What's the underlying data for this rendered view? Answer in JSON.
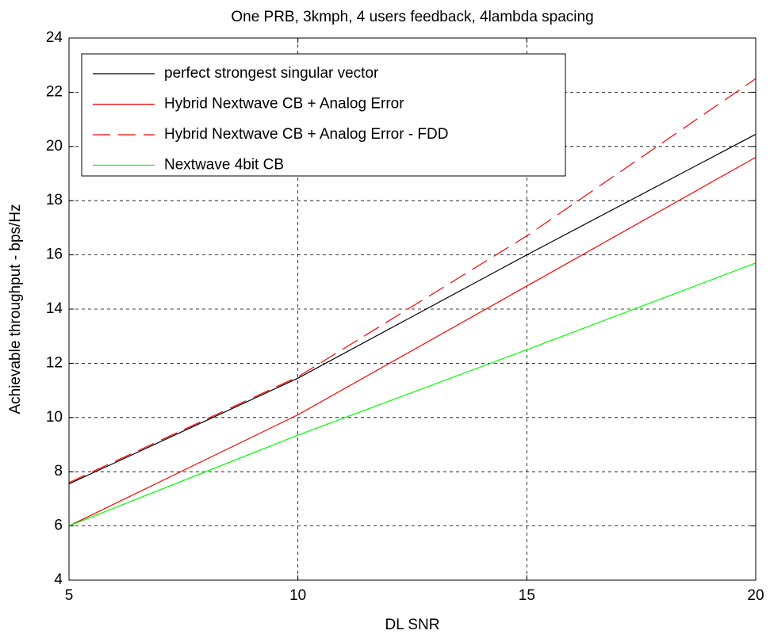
{
  "chart_data": {
    "type": "line",
    "title": "One PRB, 3kmph, 4 users feedback, 4lambda spacing",
    "x_label": "DL SNR",
    "y_label": "Achievable throughput - bps/Hz",
    "x": [
      5,
      10,
      15,
      20
    ],
    "series": [
      {
        "name": "perfect strongest singular vector",
        "color": "#000000",
        "linestyle": "solid",
        "values": [
          7.55,
          11.45,
          16.0,
          20.45
        ]
      },
      {
        "name": "Hybrid Nextwave CB + Analog Error",
        "color": "#ff0000",
        "linestyle": "solid",
        "values": [
          6.0,
          10.1,
          14.85,
          19.6
        ]
      },
      {
        "name": "Hybrid Nextwave CB + Analog Error - FDD",
        "color": "#ff0000",
        "linestyle": "dashed",
        "values": [
          7.6,
          11.5,
          16.7,
          22.5
        ]
      },
      {
        "name": "Nextwave 4bit CB",
        "color": "#00ff00",
        "linestyle": "solid",
        "values": [
          6.0,
          9.35,
          12.5,
          15.7
        ]
      }
    ],
    "xlim": [
      5,
      20
    ],
    "xticks": [
      5,
      10,
      15,
      20
    ],
    "ylim": [
      4,
      24
    ],
    "yticks": [
      4,
      6,
      8,
      10,
      12,
      14,
      16,
      18,
      20,
      22,
      24
    ],
    "grid": true,
    "legend": "upper-left"
  }
}
